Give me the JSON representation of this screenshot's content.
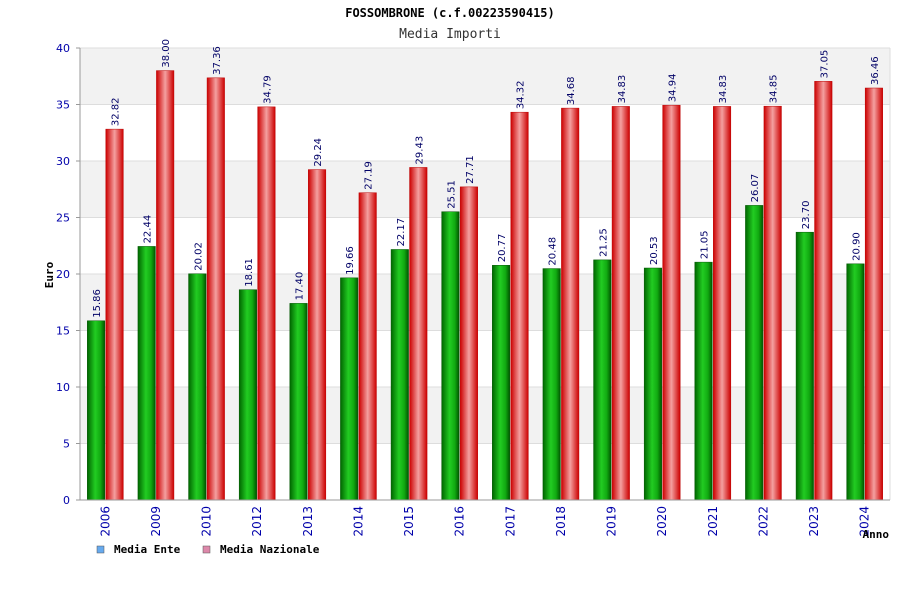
{
  "chart_data": {
    "type": "bar",
    "title": "FOSSOMBRONE (c.f.00223590415)",
    "subtitle": "Media Importi",
    "ylabel": "Euro",
    "xlabel": "Anno",
    "ylim": [
      0,
      40
    ],
    "yticks": [
      "0",
      "5",
      "10",
      "15",
      "20",
      "25",
      "30",
      "35",
      "40"
    ],
    "categories": [
      "2006",
      "2009",
      "2010",
      "2012",
      "2013",
      "2014",
      "2015",
      "2016",
      "2017",
      "2018",
      "2019",
      "2020",
      "2021",
      "2022",
      "2023",
      "2024"
    ],
    "series": [
      {
        "name": "Media Ente",
        "values": [
          15.86,
          22.44,
          20.02,
          18.61,
          17.4,
          19.66,
          22.17,
          25.51,
          20.77,
          20.48,
          21.25,
          20.53,
          21.05,
          26.07,
          23.7,
          20.9
        ],
        "labels": [
          "15.86",
          "22.44",
          "20.02",
          "18.61",
          "17.40",
          "19.66",
          "22.17",
          "25.51",
          "20.77",
          "20.48",
          "21.25",
          "20.53",
          "21.05",
          "26.07",
          "23.70",
          "20.90"
        ]
      },
      {
        "name": "Media Nazionale",
        "values": [
          32.82,
          38.0,
          37.36,
          34.79,
          29.24,
          27.19,
          29.43,
          27.71,
          34.32,
          34.68,
          34.83,
          34.94,
          34.83,
          34.85,
          37.05,
          36.46
        ],
        "labels": [
          "32.82",
          "38.00",
          "37.36",
          "34.79",
          "29.24",
          "27.19",
          "29.43",
          "27.71",
          "34.32",
          "34.68",
          "34.83",
          "34.94",
          "34.83",
          "34.85",
          "37.05",
          "36.46"
        ]
      }
    ],
    "legend": [
      {
        "label": "Media Ente",
        "swatch_color": "#66aaee"
      },
      {
        "label": "Media Nazionale",
        "swatch_color": "#dd88aa"
      }
    ],
    "colors": {
      "ente_bar": "#00bb00",
      "nazionale_bar": "#ee0000",
      "grid_band": "#f2f2f2"
    }
  }
}
